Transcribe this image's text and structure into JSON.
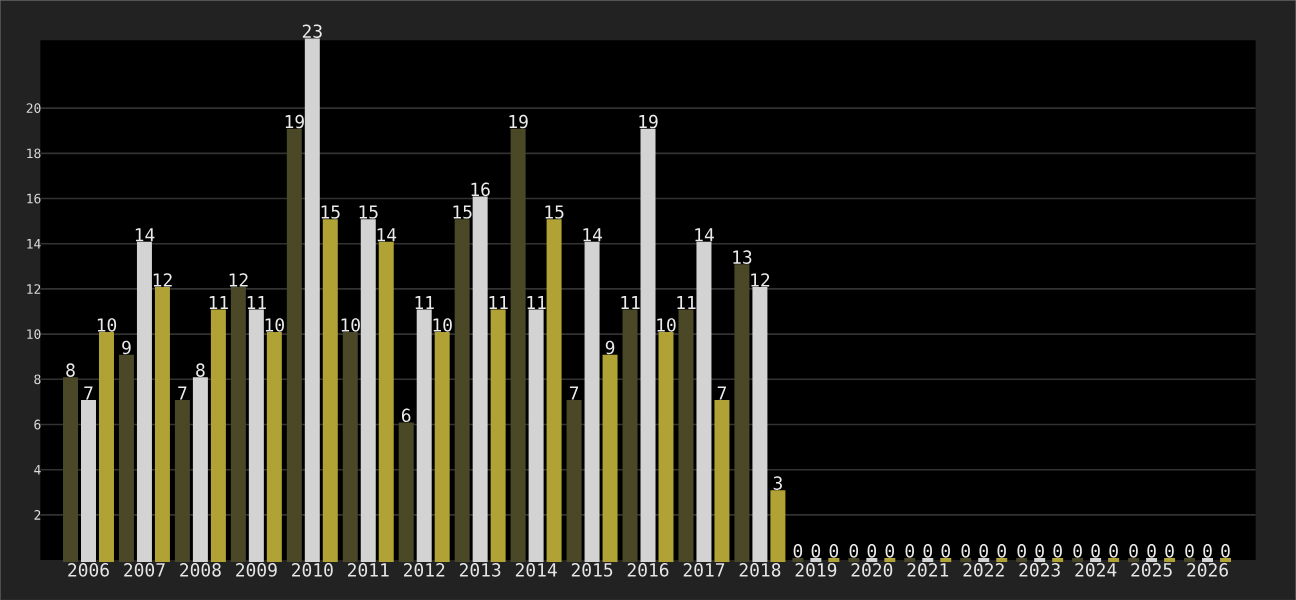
{
  "chart_data": {
    "type": "bar",
    "categories": [
      "2006",
      "2007",
      "2008",
      "2009",
      "2010",
      "2011",
      "2012",
      "2013",
      "2014",
      "2015",
      "2016",
      "2017",
      "2018",
      "2019",
      "2020",
      "2021",
      "2022",
      "2023",
      "2024",
      "2025",
      "2026"
    ],
    "series": [
      {
        "color": "#4a4826",
        "values": [
          8,
          9,
          7,
          12,
          19,
          10,
          6,
          15,
          19,
          7,
          11,
          11,
          13,
          0,
          0,
          0,
          0,
          0,
          0,
          0,
          0
        ]
      },
      {
        "color": "#d3d3d3",
        "values": [
          7,
          14,
          8,
          11,
          23,
          15,
          11,
          16,
          11,
          14,
          19,
          14,
          12,
          0,
          0,
          0,
          0,
          0,
          0,
          0,
          0
        ]
      },
      {
        "color": "#b0a235",
        "values": [
          10,
          12,
          11,
          10,
          15,
          14,
          10,
          11,
          15,
          9,
          10,
          7,
          3,
          0,
          0,
          0,
          0,
          0,
          0,
          0,
          0
        ]
      }
    ],
    "ylim": [
      0,
      23
    ],
    "yticks": [
      2,
      4,
      6,
      8,
      10,
      12,
      14,
      16,
      18,
      20
    ],
    "grid": "y",
    "data_labels": true
  }
}
